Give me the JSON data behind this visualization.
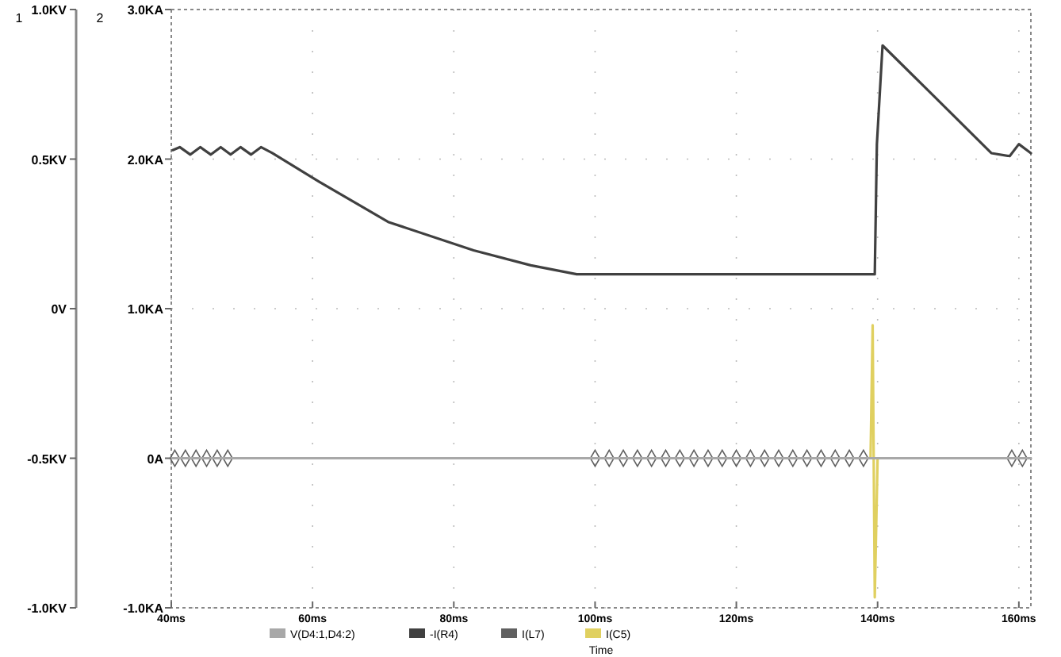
{
  "chart_data": {
    "type": "line",
    "xlabel": "Time",
    "ylabel": "1",
    "y2label": "2",
    "xlim": [
      40,
      161.7
    ],
    "xticks": [
      {
        "value": 40,
        "label": "40ms"
      },
      {
        "value": 60,
        "label": "60ms"
      },
      {
        "value": 80,
        "label": "80ms"
      },
      {
        "value": 100,
        "label": "100ms"
      },
      {
        "value": 120,
        "label": "120ms"
      },
      {
        "value": 140,
        "label": "140ms"
      },
      {
        "value": 160,
        "label": "160ms"
      }
    ],
    "ylim": [
      -1,
      1
    ],
    "yticks": [
      {
        "value": -1,
        "label": "-1.0KV"
      },
      {
        "value": -0.5,
        "label": "-0.5KV"
      },
      {
        "value": 0,
        "label": "0V"
      },
      {
        "value": 0.5,
        "label": "0.5KV"
      },
      {
        "value": 1,
        "label": "1.0KV"
      }
    ],
    "y2lim": [
      -1,
      3
    ],
    "y2ticks": [
      {
        "value": -1,
        "label": "-1.0KA"
      },
      {
        "value": 0,
        "label": "0A"
      },
      {
        "value": 1,
        "label": "1.0KA"
      },
      {
        "value": 2,
        "label": "2.0KA"
      },
      {
        "value": 3,
        "label": "3.0KA"
      }
    ],
    "grid": true,
    "legend": "bottom",
    "line_style": "solid",
    "series": [
      {
        "name": "V(D4:1,D4:2)",
        "color": "#a8a8a8",
        "x": [
          40,
          161.7
        ],
        "values": [
          -0.5,
          -0.5
        ]
      },
      {
        "name": "-I(R4)",
        "color": "#404040",
        "axis": "y2",
        "x": [
          40.2,
          41.2,
          42.7,
          44.1,
          45.6,
          47.0,
          48.4,
          49.8,
          51.3,
          52.7,
          54.3,
          60.9,
          70.7,
          82.8,
          90.9,
          97.4,
          139.6,
          139.9,
          140.7,
          148.0,
          156.1,
          158.7,
          160.0,
          161.7
        ],
        "values": [
          2.06,
          2.08,
          2.03,
          2.08,
          2.03,
          2.08,
          2.03,
          2.08,
          2.03,
          2.08,
          2.04,
          1.85,
          1.58,
          1.39,
          1.29,
          1.23,
          1.23,
          2.1,
          2.76,
          2.42,
          2.04,
          2.02,
          2.1,
          2.04
        ]
      },
      {
        "name": "I(L7)",
        "type": "scatter",
        "color": "#606060",
        "axis": "y2",
        "marker": "diamond",
        "x": [
          40.5,
          42,
          43.5,
          45,
          46.5,
          48,
          100,
          102,
          104,
          106,
          108,
          110,
          112,
          114,
          116,
          118,
          120,
          122,
          124,
          126,
          128,
          130,
          132,
          134,
          136,
          138,
          159,
          160.5
        ],
        "values": [
          0,
          0,
          0,
          0,
          0,
          0,
          0,
          0,
          0,
          0,
          0,
          0,
          0,
          0,
          0,
          0,
          0,
          0,
          0,
          0,
          0,
          0,
          0,
          0,
          0,
          0,
          0,
          0
        ]
      },
      {
        "name": "I(C5)",
        "color": "#e0d060",
        "axis": "y2",
        "x": [
          139.0,
          139.3,
          139.6,
          140
        ],
        "values": [
          0,
          0.89,
          -0.93,
          0
        ]
      }
    ]
  }
}
